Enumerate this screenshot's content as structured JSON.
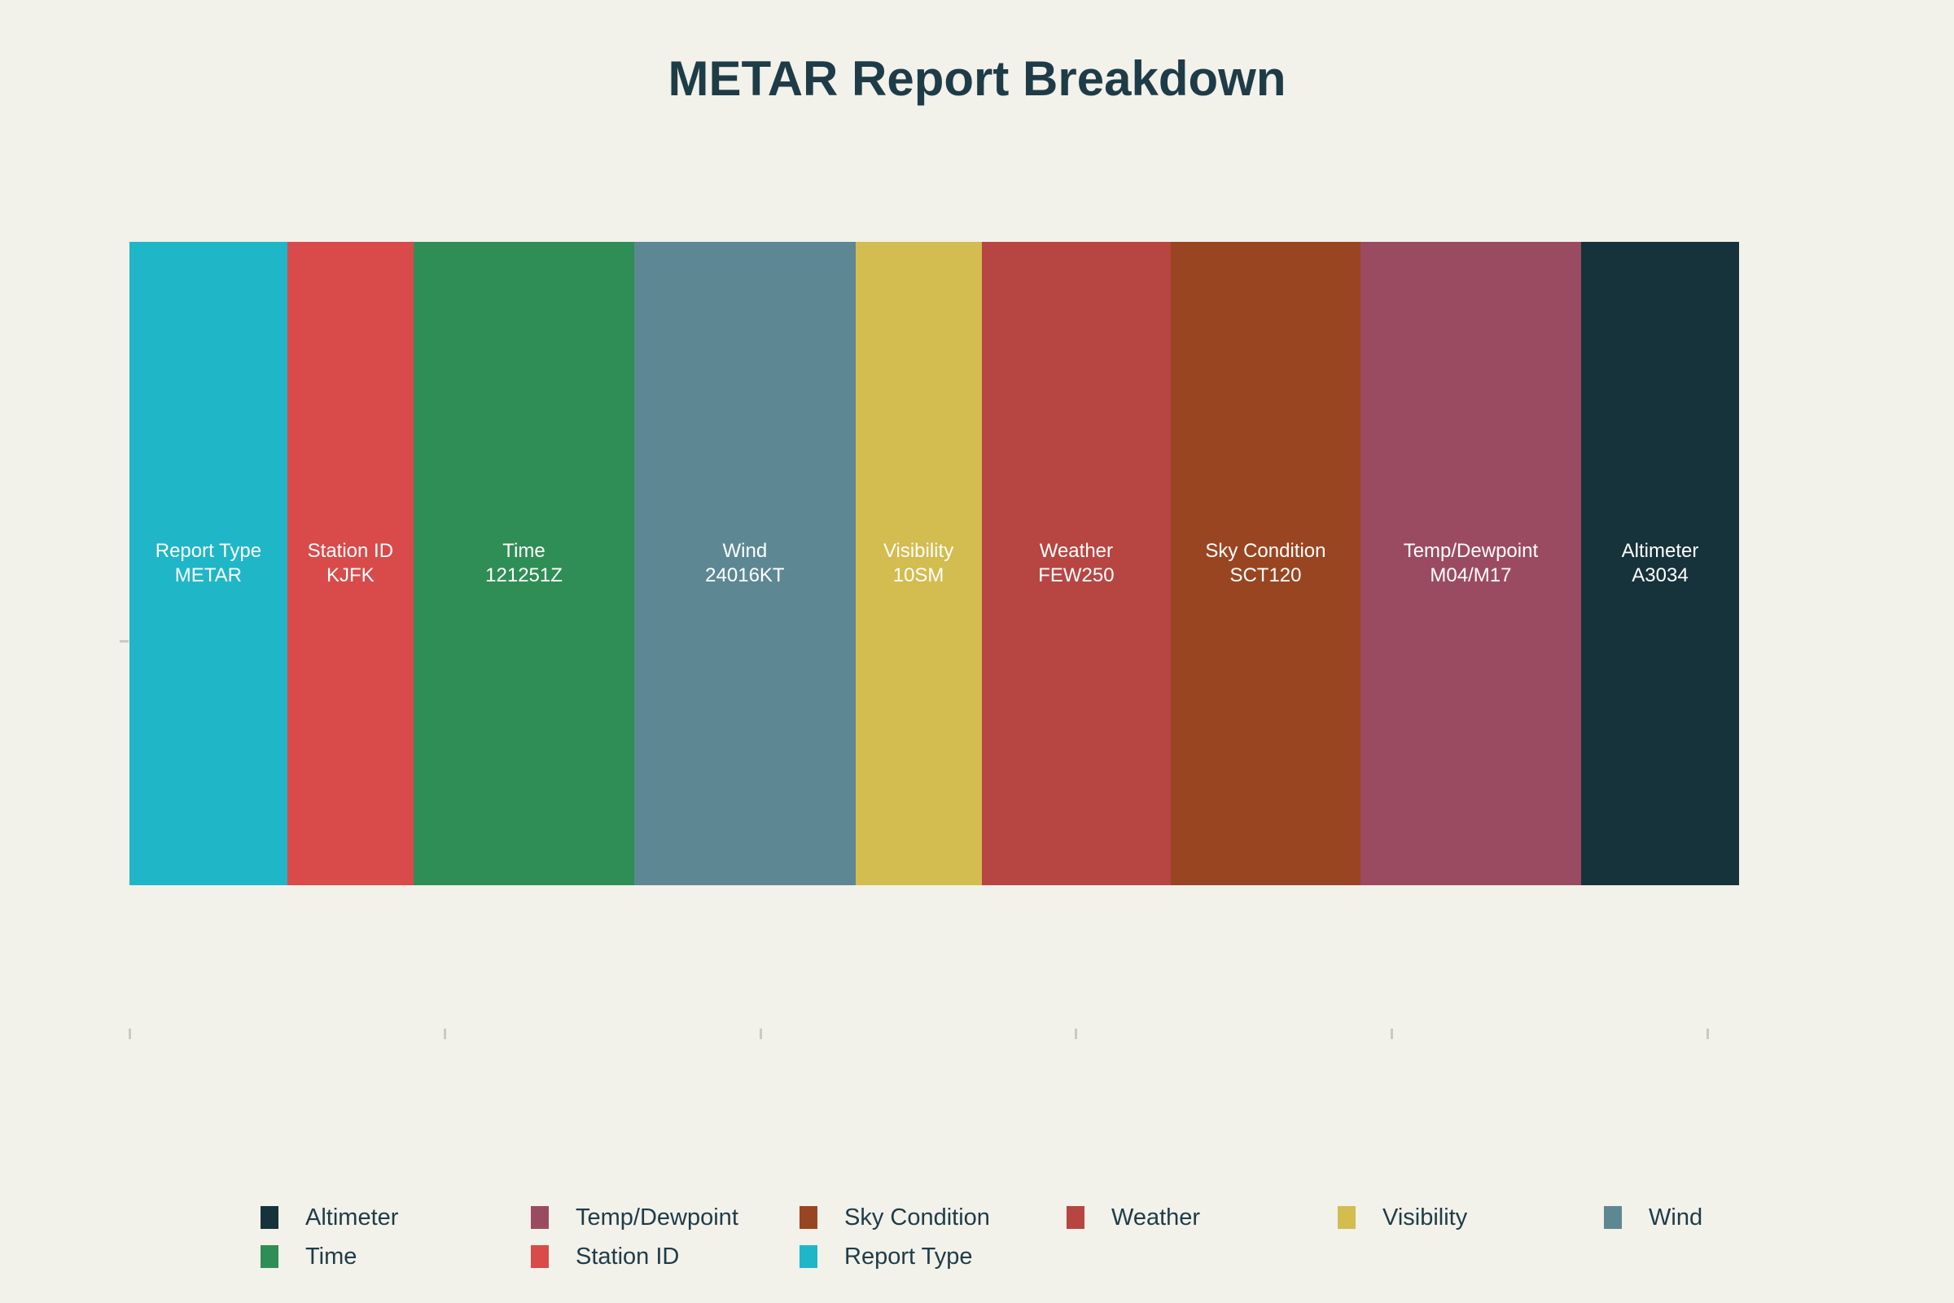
{
  "page": {
    "background_color": "#f2f1ea",
    "text_color": "#1e3c47"
  },
  "chart_data": {
    "type": "bar",
    "orientation": "horizontal_stacked",
    "title": "METAR Report Breakdown",
    "categories": [
      "Report Type",
      "Station ID",
      "Time",
      "Wind",
      "Visibility",
      "Weather",
      "Sky Condition",
      "Temp/Dewpoint",
      "Altimeter"
    ],
    "values": [
      5,
      4,
      7,
      7,
      4,
      6,
      6,
      7,
      5
    ],
    "segments": [
      {
        "name": "Report Type",
        "value": "METAR",
        "length": 5,
        "color": "#1fb6c8"
      },
      {
        "name": "Station ID",
        "value": "KJFK",
        "length": 4,
        "color": "#d94a4a"
      },
      {
        "name": "Time",
        "value": "121251Z",
        "length": 7,
        "color": "#2f8e55"
      },
      {
        "name": "Wind",
        "value": "24016KT",
        "length": 7,
        "color": "#5d8893"
      },
      {
        "name": "Visibility",
        "value": "10SM",
        "length": 4,
        "color": "#d3bc50"
      },
      {
        "name": "Weather",
        "value": "FEW250",
        "length": 6,
        "color": "#b74542"
      },
      {
        "name": "Sky Condition",
        "value": "SCT120",
        "length": 6,
        "color": "#9a4521"
      },
      {
        "name": "Temp/Dewpoint",
        "value": "M04/M17",
        "length": 7,
        "color": "#9b4b61"
      },
      {
        "name": "Altimeter",
        "value": "A3034",
        "length": 5,
        "color": "#16323a"
      }
    ],
    "label_text_color": "#ffffff",
    "xlabel": "",
    "ylabel": "",
    "xlim": [
      0,
      51
    ],
    "xticks": [
      0,
      10,
      20,
      30,
      40,
      50
    ],
    "xtick_labels_visible": false,
    "ytick_labels_visible": false,
    "grid": false,
    "legend_position": "bottom",
    "legend_rows": [
      [
        "Altimeter",
        "Temp/Dewpoint",
        "Sky Condition",
        "Weather",
        "Visibility",
        "Wind"
      ],
      [
        "Time",
        "Station ID",
        "Report Type"
      ]
    ]
  }
}
